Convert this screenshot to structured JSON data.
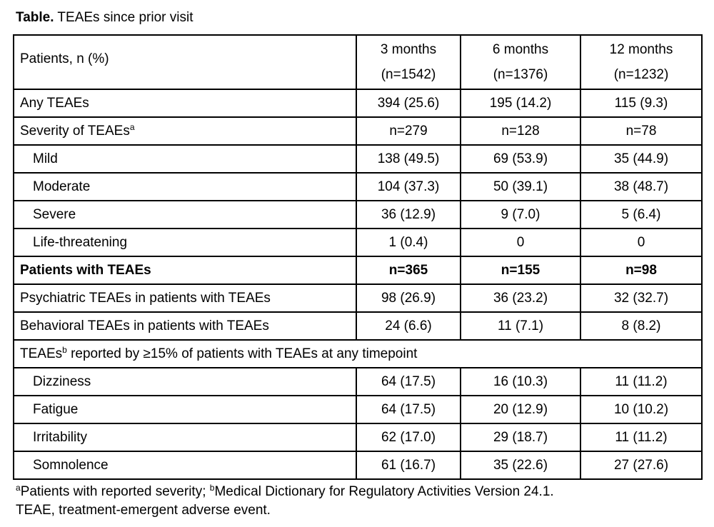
{
  "caption": {
    "prefix": "Table.",
    "text": " TEAEs since prior visit"
  },
  "table": {
    "header": {
      "row_label": "Patients, n (%)",
      "columns": [
        {
          "line1": "3 months",
          "line2": "(n=1542)"
        },
        {
          "line1": "6 months",
          "line2": "(n=1376)"
        },
        {
          "line1": "12 months",
          "line2": "(n=1232)"
        }
      ]
    },
    "rows": [
      {
        "label": "Any TEAEs",
        "sup": "",
        "indent": false,
        "bold": false,
        "span": false,
        "values": [
          "394 (25.6)",
          "195 (14.2)",
          "115 (9.3)"
        ]
      },
      {
        "label": "Severity of TEAEs",
        "sup": "a",
        "indent": false,
        "bold": false,
        "span": false,
        "values": [
          "n=279",
          "n=128",
          "n=78"
        ]
      },
      {
        "label": "Mild",
        "sup": "",
        "indent": true,
        "bold": false,
        "span": false,
        "values": [
          "138 (49.5)",
          "69 (53.9)",
          "35 (44.9)"
        ]
      },
      {
        "label": "Moderate",
        "sup": "",
        "indent": true,
        "bold": false,
        "span": false,
        "values": [
          "104 (37.3)",
          "50 (39.1)",
          "38 (48.7)"
        ]
      },
      {
        "label": "Severe",
        "sup": "",
        "indent": true,
        "bold": false,
        "span": false,
        "values": [
          "36 (12.9)",
          "9 (7.0)",
          "5 (6.4)"
        ]
      },
      {
        "label": "Life-threatening",
        "sup": "",
        "indent": true,
        "bold": false,
        "span": false,
        "values": [
          "1 (0.4)",
          "0",
          "0"
        ]
      },
      {
        "label": "Patients with TEAEs",
        "sup": "",
        "indent": false,
        "bold": true,
        "span": false,
        "values": [
          "n=365",
          "n=155",
          "n=98"
        ]
      },
      {
        "label": "Psychiatric TEAEs in patients with TEAEs",
        "sup": "",
        "indent": false,
        "bold": false,
        "span": false,
        "values": [
          "98 (26.9)",
          "36 (23.2)",
          "32 (32.7)"
        ]
      },
      {
        "label": "Behavioral TEAEs in patients with TEAEs",
        "sup": "",
        "indent": false,
        "bold": false,
        "span": false,
        "values": [
          "24 (6.6)",
          "11 (7.1)",
          "8 (8.2)"
        ]
      },
      {
        "label": "TEAEs",
        "sup": "b",
        "label_after": " reported by ≥15% of patients with TEAEs at any timepoint",
        "indent": false,
        "bold": false,
        "span": true,
        "values": []
      },
      {
        "label": "Dizziness",
        "sup": "",
        "indent": true,
        "bold": false,
        "span": false,
        "values": [
          "64 (17.5)",
          "16 (10.3)",
          "11 (11.2)"
        ]
      },
      {
        "label": "Fatigue",
        "sup": "",
        "indent": true,
        "bold": false,
        "span": false,
        "values": [
          "64 (17.5)",
          "20 (12.9)",
          "10 (10.2)"
        ]
      },
      {
        "label": "Irritability",
        "sup": "",
        "indent": true,
        "bold": false,
        "span": false,
        "values": [
          "62 (17.0)",
          "29 (18.7)",
          "11 (11.2)"
        ]
      },
      {
        "label": "Somnolence",
        "sup": "",
        "indent": true,
        "bold": false,
        "span": false,
        "values": [
          "61 (16.7)",
          "35 (22.6)",
          "27 (27.6)"
        ]
      }
    ]
  },
  "footnotes": {
    "line1": [
      {
        "sup": "a"
      },
      {
        "text": "Patients with reported severity; "
      },
      {
        "sup": "b"
      },
      {
        "text": "Medical Dictionary for Regulatory Activities Version 24.1."
      }
    ],
    "line2": "TEAE, treatment-emergent adverse event."
  },
  "colors": {
    "text": "#000000",
    "border": "#000000",
    "background": "#ffffff"
  }
}
